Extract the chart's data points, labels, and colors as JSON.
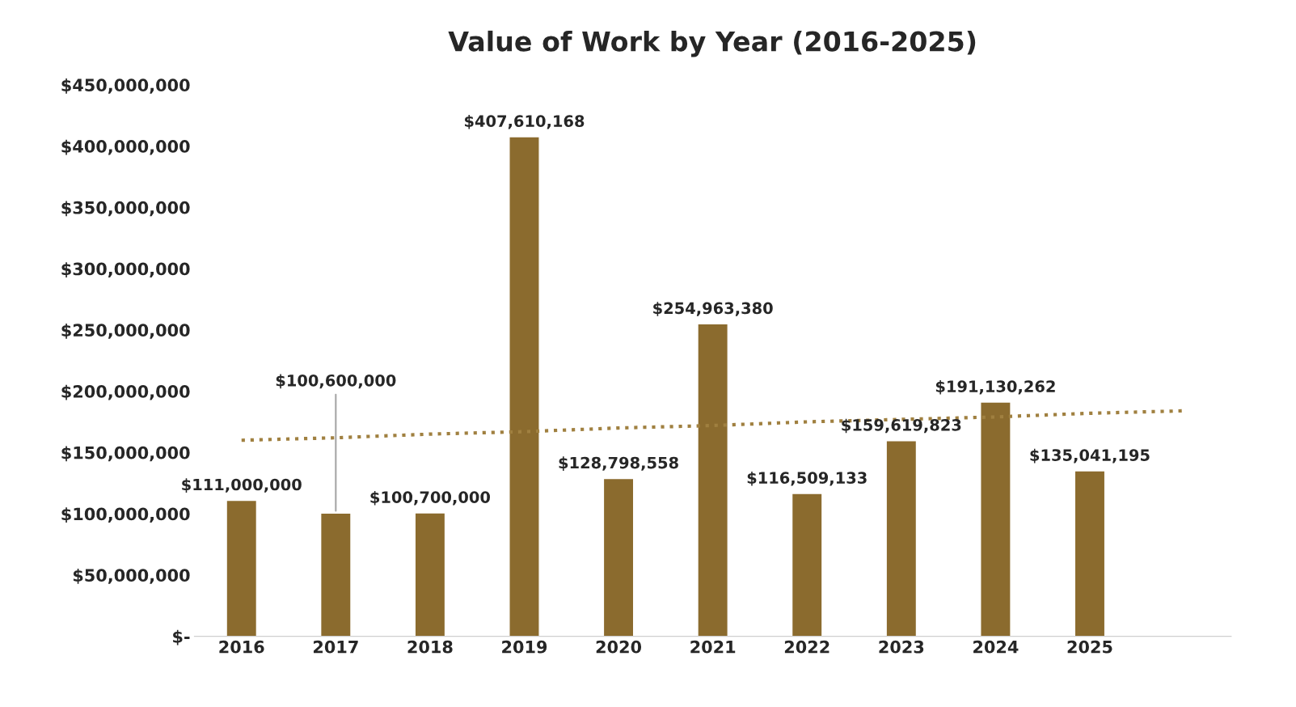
{
  "chart_data": {
    "type": "bar",
    "title": "Value of Work by Year (2016-2025)",
    "categories": [
      "2016",
      "2017",
      "2018",
      "2019",
      "2020",
      "2021",
      "2022",
      "2023",
      "2024",
      "2025",
      null
    ],
    "series": [
      {
        "color": "#8b6b2e",
        "values": [
          111000000,
          100600000,
          100700000,
          407610168,
          128798558,
          254963380,
          116509133,
          159619823,
          191130262,
          135041195,
          null
        ],
        "value_labels": [
          "$111,000,000",
          "$100,600,000",
          "$100,700,000",
          "$407,610,168",
          "$128,798,558",
          "$254,963,380",
          "$116,509,133",
          "$159,619,823",
          "$191,130,262",
          "$135,041,195",
          null
        ]
      },
      {
        "type": "line",
        "color": "#a08040",
        "line_style": "dotted",
        "values": [
          160000000,
          162000000,
          165000000,
          167000000,
          170000000,
          172000000,
          175000000,
          177000000,
          179000000,
          182000000,
          184000000
        ]
      }
    ],
    "ylim": [
      0,
      450000000
    ],
    "yticks": [
      {
        "value": 0,
        "label": "$-"
      },
      {
        "value": 50000000,
        "label": "$50,000,000"
      },
      {
        "value": 100000000,
        "label": "$100,000,000"
      },
      {
        "value": 150000000,
        "label": "$150,000,000"
      },
      {
        "value": 200000000,
        "label": "$200,000,000"
      },
      {
        "value": 250000000,
        "label": "$250,000,000"
      },
      {
        "value": 300000000,
        "label": "$300,000,000"
      },
      {
        "value": 350000000,
        "label": "$350,000,000"
      },
      {
        "value": 400000000,
        "label": "$400,000,000"
      },
      {
        "value": 450000000,
        "label": "$450,000,000"
      }
    ],
    "grid": false,
    "legend": false
  }
}
